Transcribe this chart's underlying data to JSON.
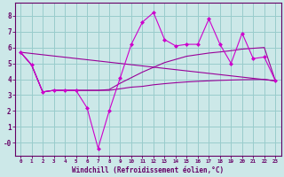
{
  "bg_color": "#cce8e8",
  "grid_color": "#99cccc",
  "line_color": "#cc00cc",
  "line_color2": "#990099",
  "xlabel": "Windchill (Refroidissement éolien,°C)",
  "xlabel_color": "#660066",
  "tick_color": "#660066",
  "spine_color": "#660066",
  "xlim": [
    -0.5,
    23.5
  ],
  "ylim": [
    -0.8,
    8.8
  ],
  "xticks": [
    0,
    1,
    2,
    3,
    4,
    5,
    6,
    7,
    8,
    9,
    10,
    11,
    12,
    13,
    14,
    15,
    16,
    17,
    18,
    19,
    20,
    21,
    22,
    23
  ],
  "yticks": [
    0,
    1,
    2,
    3,
    4,
    5,
    6,
    7,
    8
  ],
  "ytick_labels": [
    "-0",
    "1",
    "2",
    "3",
    "4",
    "5",
    "6",
    "7",
    "8"
  ],
  "line1_x": [
    0,
    1,
    2,
    3,
    4,
    5,
    6,
    7,
    8,
    9,
    10,
    11,
    12,
    13,
    14,
    15,
    16,
    17,
    18,
    19,
    20,
    21,
    22,
    23
  ],
  "line1_y": [
    5.7,
    4.9,
    3.2,
    3.3,
    3.3,
    3.3,
    2.2,
    -0.35,
    2.0,
    4.1,
    6.2,
    7.6,
    8.2,
    6.5,
    6.1,
    6.2,
    6.2,
    7.8,
    6.2,
    5.0,
    6.9,
    5.3,
    5.4,
    3.9
  ],
  "line2_x": [
    0,
    1,
    2,
    3,
    4,
    5,
    6,
    7,
    8,
    9,
    10,
    11,
    12,
    13,
    14,
    15,
    16,
    17,
    18,
    19,
    20,
    21,
    22,
    23
  ],
  "line2_y": [
    5.7,
    4.9,
    3.2,
    3.3,
    3.3,
    3.3,
    3.3,
    3.3,
    3.35,
    3.75,
    4.1,
    4.45,
    4.75,
    5.05,
    5.25,
    5.45,
    5.55,
    5.65,
    5.72,
    5.8,
    5.9,
    5.95,
    6.0,
    3.9
  ],
  "line3_x": [
    0,
    1,
    2,
    3,
    4,
    5,
    6,
    7,
    8,
    9,
    10,
    11,
    12,
    13,
    14,
    15,
    16,
    17,
    18,
    19,
    20,
    21,
    22,
    23
  ],
  "line3_y": [
    5.7,
    4.9,
    3.2,
    3.3,
    3.3,
    3.3,
    3.3,
    3.3,
    3.3,
    3.4,
    3.5,
    3.55,
    3.65,
    3.72,
    3.78,
    3.83,
    3.87,
    3.9,
    3.93,
    3.95,
    3.97,
    3.98,
    3.99,
    3.9
  ],
  "line4_x": [
    0,
    23
  ],
  "line4_y": [
    5.7,
    3.9
  ]
}
